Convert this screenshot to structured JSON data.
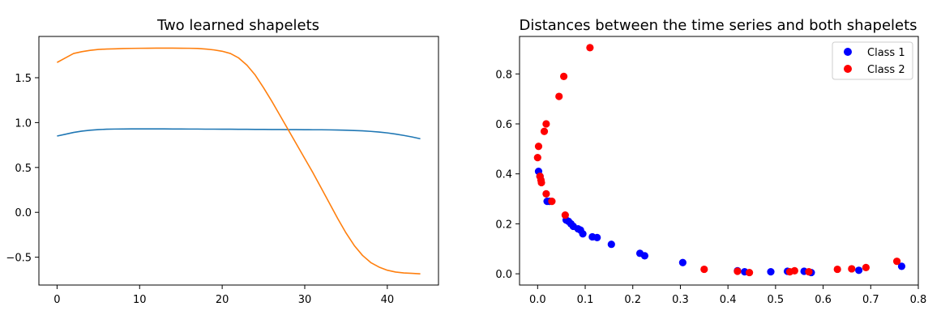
{
  "chart_data": [
    {
      "type": "line",
      "title": "Two learned shapelets",
      "xlabel": "",
      "ylabel": "",
      "xlim": [
        -2.2,
        46.2
      ],
      "ylim": [
        -0.81,
        1.96
      ],
      "xticks": [
        0,
        10,
        20,
        30,
        40
      ],
      "yticks": [
        -0.5,
        0.0,
        0.5,
        1.0,
        1.5
      ],
      "xtick_labels": [
        "0",
        "10",
        "20",
        "30",
        "40"
      ],
      "ytick_labels": [
        "−0.5",
        "0.0",
        "0.5",
        "1.0",
        "1.5"
      ],
      "series": [
        {
          "color": "#1f77b4",
          "x": [
            0,
            1,
            2,
            3,
            4,
            5,
            6,
            7,
            8,
            9,
            10,
            11,
            12,
            13,
            14,
            15,
            16,
            17,
            18,
            19,
            20,
            21,
            22,
            23,
            24,
            25,
            26,
            27,
            28,
            29,
            30,
            31,
            32,
            33,
            34,
            35,
            36,
            37,
            38,
            39,
            40,
            41,
            42,
            43,
            44
          ],
          "y": [
            0.85,
            0.87,
            0.89,
            0.905,
            0.915,
            0.922,
            0.926,
            0.928,
            0.929,
            0.93,
            0.93,
            0.93,
            0.93,
            0.93,
            0.929,
            0.929,
            0.928,
            0.928,
            0.927,
            0.927,
            0.926,
            0.926,
            0.925,
            0.925,
            0.924,
            0.924,
            0.923,
            0.923,
            0.922,
            0.922,
            0.921,
            0.92,
            0.92,
            0.919,
            0.917,
            0.915,
            0.912,
            0.908,
            0.902,
            0.895,
            0.885,
            0.872,
            0.857,
            0.84,
            0.82
          ]
        },
        {
          "color": "#ff7f0e",
          "x": [
            0,
            1,
            2,
            3,
            4,
            5,
            6,
            7,
            8,
            9,
            10,
            11,
            12,
            13,
            14,
            15,
            16,
            17,
            18,
            19,
            20,
            21,
            22,
            23,
            24,
            25,
            26,
            27,
            28,
            29,
            30,
            31,
            32,
            33,
            34,
            35,
            36,
            37,
            38,
            39,
            40,
            41,
            42,
            43,
            44
          ],
          "y": [
            1.67,
            1.72,
            1.77,
            1.79,
            1.805,
            1.815,
            1.82,
            1.822,
            1.825,
            1.827,
            1.828,
            1.829,
            1.83,
            1.83,
            1.83,
            1.829,
            1.828,
            1.826,
            1.82,
            1.81,
            1.795,
            1.77,
            1.72,
            1.64,
            1.53,
            1.39,
            1.24,
            1.08,
            0.92,
            0.76,
            0.6,
            0.44,
            0.27,
            0.1,
            -0.07,
            -0.23,
            -0.37,
            -0.48,
            -0.56,
            -0.61,
            -0.645,
            -0.665,
            -0.675,
            -0.68,
            -0.685
          ]
        }
      ]
    },
    {
      "type": "scatter",
      "title": "Distances between the time series and both shapelets",
      "xlabel": "",
      "ylabel": "",
      "xlim": [
        -0.038,
        0.8
      ],
      "ylim": [
        -0.045,
        0.95
      ],
      "xticks": [
        0.0,
        0.1,
        0.2,
        0.3,
        0.4,
        0.5,
        0.6,
        0.7,
        0.8
      ],
      "yticks": [
        0.0,
        0.2,
        0.4,
        0.6,
        0.8
      ],
      "xtick_labels": [
        "0.0",
        "0.1",
        "0.2",
        "0.3",
        "0.4",
        "0.5",
        "0.6",
        "0.7",
        "0.8"
      ],
      "ytick_labels": [
        "0.0",
        "0.2",
        "0.4",
        "0.6",
        "0.8"
      ],
      "legend": "top-right",
      "series": [
        {
          "name": "Class 1",
          "color": "#0000ff",
          "x": [
            0.002,
            0.005,
            0.02,
            0.025,
            0.06,
            0.065,
            0.07,
            0.075,
            0.085,
            0.09,
            0.095,
            0.115,
            0.125,
            0.155,
            0.215,
            0.225,
            0.305,
            0.42,
            0.435,
            0.49,
            0.525,
            0.56,
            0.575,
            0.675,
            0.765
          ],
          "y": [
            0.41,
            0.39,
            0.29,
            0.29,
            0.215,
            0.21,
            0.2,
            0.19,
            0.18,
            0.175,
            0.16,
            0.148,
            0.145,
            0.118,
            0.082,
            0.072,
            0.045,
            0.012,
            0.008,
            0.008,
            0.01,
            0.01,
            0.005,
            0.014,
            0.03
          ]
        },
        {
          "name": "Class 2",
          "color": "#ff0000",
          "x": [
            0.11,
            0.055,
            0.045,
            0.018,
            0.014,
            0.002,
            0.0,
            0.005,
            0.007,
            0.008,
            0.018,
            0.03,
            0.058,
            0.35,
            0.42,
            0.445,
            0.53,
            0.54,
            0.57,
            0.63,
            0.66,
            0.69,
            0.755
          ],
          "y": [
            0.905,
            0.79,
            0.71,
            0.6,
            0.57,
            0.51,
            0.465,
            0.39,
            0.375,
            0.365,
            0.32,
            0.29,
            0.235,
            0.018,
            0.01,
            0.005,
            0.008,
            0.012,
            0.008,
            0.018,
            0.02,
            0.025,
            0.05
          ]
        }
      ]
    }
  ]
}
